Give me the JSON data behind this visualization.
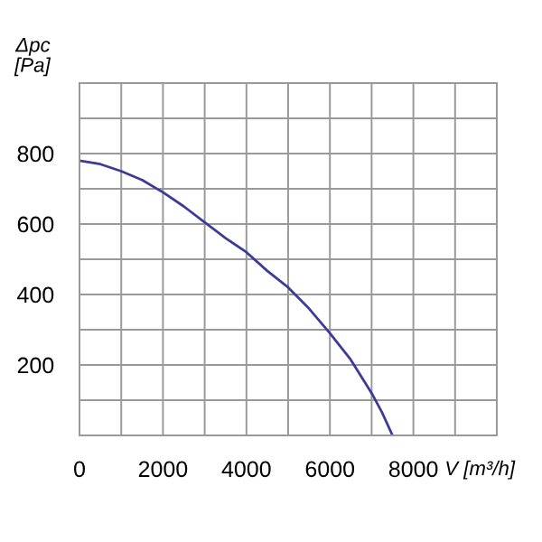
{
  "chart_data": {
    "type": "line",
    "xlabel": "V [m³/h]",
    "ylabel": "Δpc\n[Pa]",
    "x": [
      0,
      500,
      1000,
      1500,
      2000,
      2500,
      3000,
      3500,
      4000,
      4500,
      5000,
      5500,
      6000,
      6500,
      7000,
      7250,
      7500
    ],
    "series": [
      {
        "color": "#3c3c96",
        "values": [
          780,
          770,
          750,
          725,
          690,
          650,
          605,
          560,
          520,
          467,
          420,
          360,
          290,
          215,
          120,
          65,
          0
        ]
      }
    ],
    "xlim": [
      0,
      10000
    ],
    "ylim": [
      0,
      1000
    ],
    "xticks": [
      {
        "value": 0,
        "label": "0"
      },
      {
        "value": 1000,
        "label": null
      },
      2000,
      {
        "value": 3000,
        "label": null
      },
      4000,
      {
        "value": 5000,
        "label": null
      },
      6000,
      {
        "value": 7000,
        "label": null
      },
      8000,
      {
        "value": 9000,
        "label": null
      },
      {
        "value": 10000,
        "label": null
      }
    ],
    "yticks": [
      {
        "value": 0,
        "label": null
      },
      {
        "value": 100,
        "label": null
      },
      200,
      {
        "value": 300,
        "label": null
      },
      400,
      {
        "value": 500,
        "label": null
      },
      600,
      {
        "value": 700,
        "label": null
      },
      800,
      {
        "value": 900,
        "label": null
      },
      {
        "value": 1000,
        "label": null
      }
    ],
    "grid": true,
    "marker": "none",
    "line_style": "solid"
  }
}
